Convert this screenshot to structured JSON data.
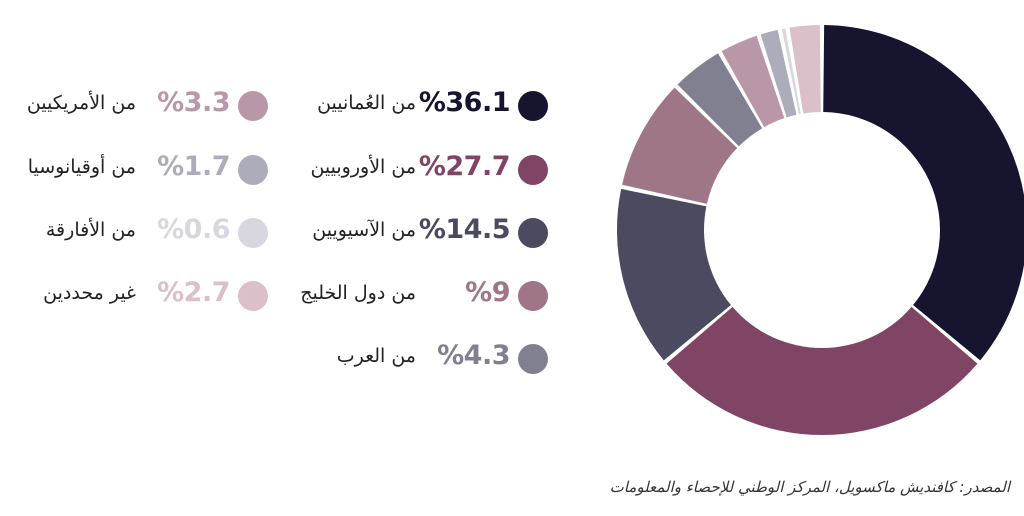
{
  "chart_data": {
    "type": "pie",
    "style": "donut",
    "start_angle_deg": 0,
    "direction": "clockwise",
    "series": [
      {
        "name": "من العُمانيين",
        "value": 36.1,
        "value_label": "%36.1",
        "color": "#16142f"
      },
      {
        "name": "من الأوروبيين",
        "value": 27.7,
        "value_label": "%27.7",
        "color": "#804465"
      },
      {
        "name": "من الآسيويين",
        "value": 14.5,
        "value_label": "%14.5",
        "color": "#4b4a60"
      },
      {
        "name": "من دول الخليج",
        "value": 9,
        "value_label": "%9",
        "color": "#9f7588"
      },
      {
        "name": "من العرب",
        "value": 4.3,
        "value_label": "%4.3",
        "color": "#818090"
      },
      {
        "name": "من الأمريكيين",
        "value": 3.3,
        "value_label": "%3.3",
        "color": "#ba97a8"
      },
      {
        "name": "من أوقيانوسيا",
        "value": 1.7,
        "value_label": "%1.7",
        "color": "#adacba"
      },
      {
        "name": "من الأفارقة",
        "value": 0.6,
        "value_label": "%0.6",
        "color": "#d8d7df"
      },
      {
        "name": "غير محددين",
        "value": 2.7,
        "value_label": "%2.7",
        "color": "#dbbfc9"
      }
    ]
  },
  "source": "المصدر: كافنديش ماكسويل، المركز الوطني للإحصاء والمعلومات"
}
